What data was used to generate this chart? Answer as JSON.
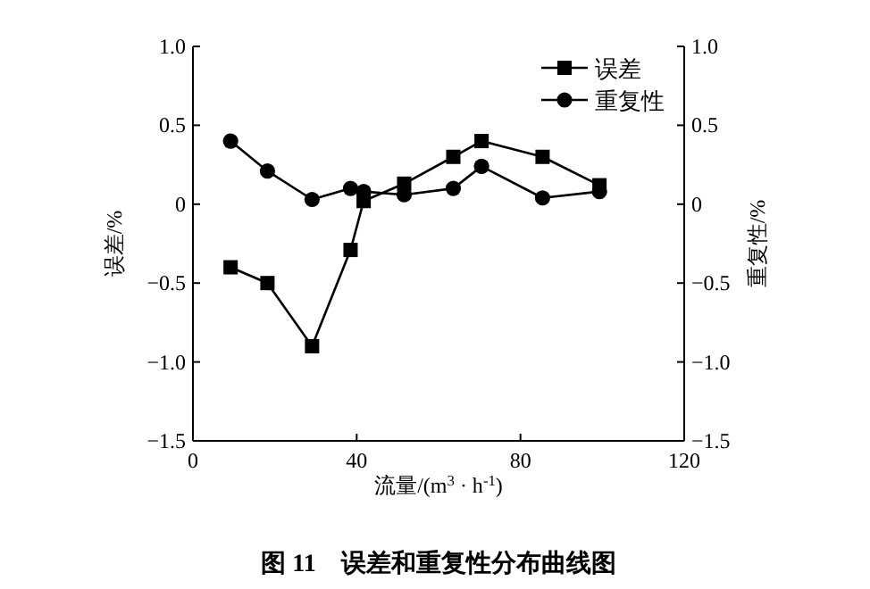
{
  "chart_data": {
    "type": "line",
    "title": "图 11　误差和重复性分布曲线图",
    "xlabel": "流量/(m$^{3}$ · h$^{-1}$)",
    "ylabel": "误差/%",
    "y2label": "重复性/%",
    "x": [
      9.2,
      18.2,
      29.1,
      38.5,
      41.7,
      51.6,
      63.6,
      70.5,
      85.4,
      99.3
    ],
    "series": [
      {
        "name": "误差",
        "color": "#000000",
        "marker": "square",
        "values": [
          -0.4,
          -0.5,
          -0.9,
          -0.29,
          0.02,
          0.13,
          0.3,
          0.4,
          0.3,
          0.12
        ]
      },
      {
        "name": "重复性",
        "color": "#000000",
        "marker": "circle",
        "axis": "y2",
        "values": [
          0.4,
          0.21,
          0.03,
          0.1,
          0.08,
          0.06,
          0.1,
          0.24,
          0.04,
          0.08
        ]
      }
    ],
    "xlim": [
      0,
      120
    ],
    "xticks": [
      0,
      40,
      80,
      120
    ],
    "ylim": [
      -1.5,
      1.0
    ],
    "yticks": [
      -1.5,
      {
        "value": -1.0,
        "label": "−1.0"
      },
      -0.5,
      0,
      0.5,
      {
        "value": 1.0,
        "label": "1.0"
      }
    ],
    "y2lim": [
      -1.5,
      1.0
    ],
    "y2ticks": [
      -1.5,
      {
        "value": -1.0,
        "label": "−1.0"
      },
      -0.5,
      0,
      0.5,
      {
        "value": 1.0,
        "label": "1.0"
      }
    ],
    "legend": "top right",
    "grid": false,
    "line_style": "solid"
  }
}
